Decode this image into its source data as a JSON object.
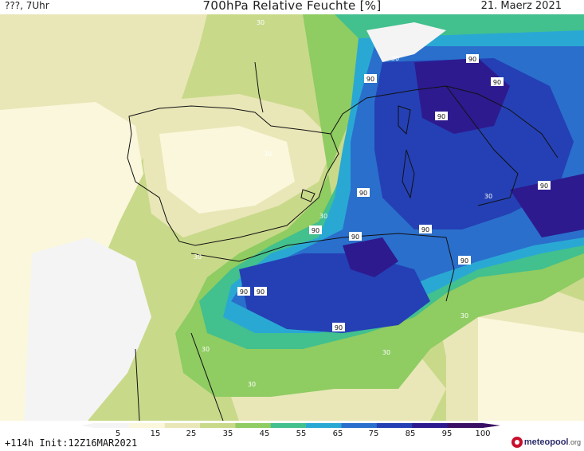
{
  "header": {
    "location": "???, 7Uhr",
    "title": "700hPa Relative Feuchte [%]",
    "date": "21. Maerz 2021"
  },
  "footer": {
    "run_info": "+114h  Init:12Z16MAR2021",
    "logo_name": "meteopool",
    "logo_tld": ".org"
  },
  "colorbar": {
    "tick_labels": [
      "5",
      "15",
      "25",
      "35",
      "45",
      "55",
      "65",
      "75",
      "85",
      "95",
      "100"
    ],
    "colors": [
      "#f4f4f4",
      "#fbf7dc",
      "#e9e7b8",
      "#c9d98a",
      "#8fcc62",
      "#42c08e",
      "#2aa8d4",
      "#2a6fcc",
      "#2440b4",
      "#2d1a8e",
      "#3a1065"
    ]
  },
  "map_labels": [
    "30",
    "30",
    "90",
    "90",
    "90",
    "90",
    "30",
    "90",
    "30",
    "90",
    "90",
    "90",
    "90",
    "30",
    "90",
    "90",
    "90",
    "90",
    "30",
    "30",
    "30",
    "30",
    "30"
  ]
}
